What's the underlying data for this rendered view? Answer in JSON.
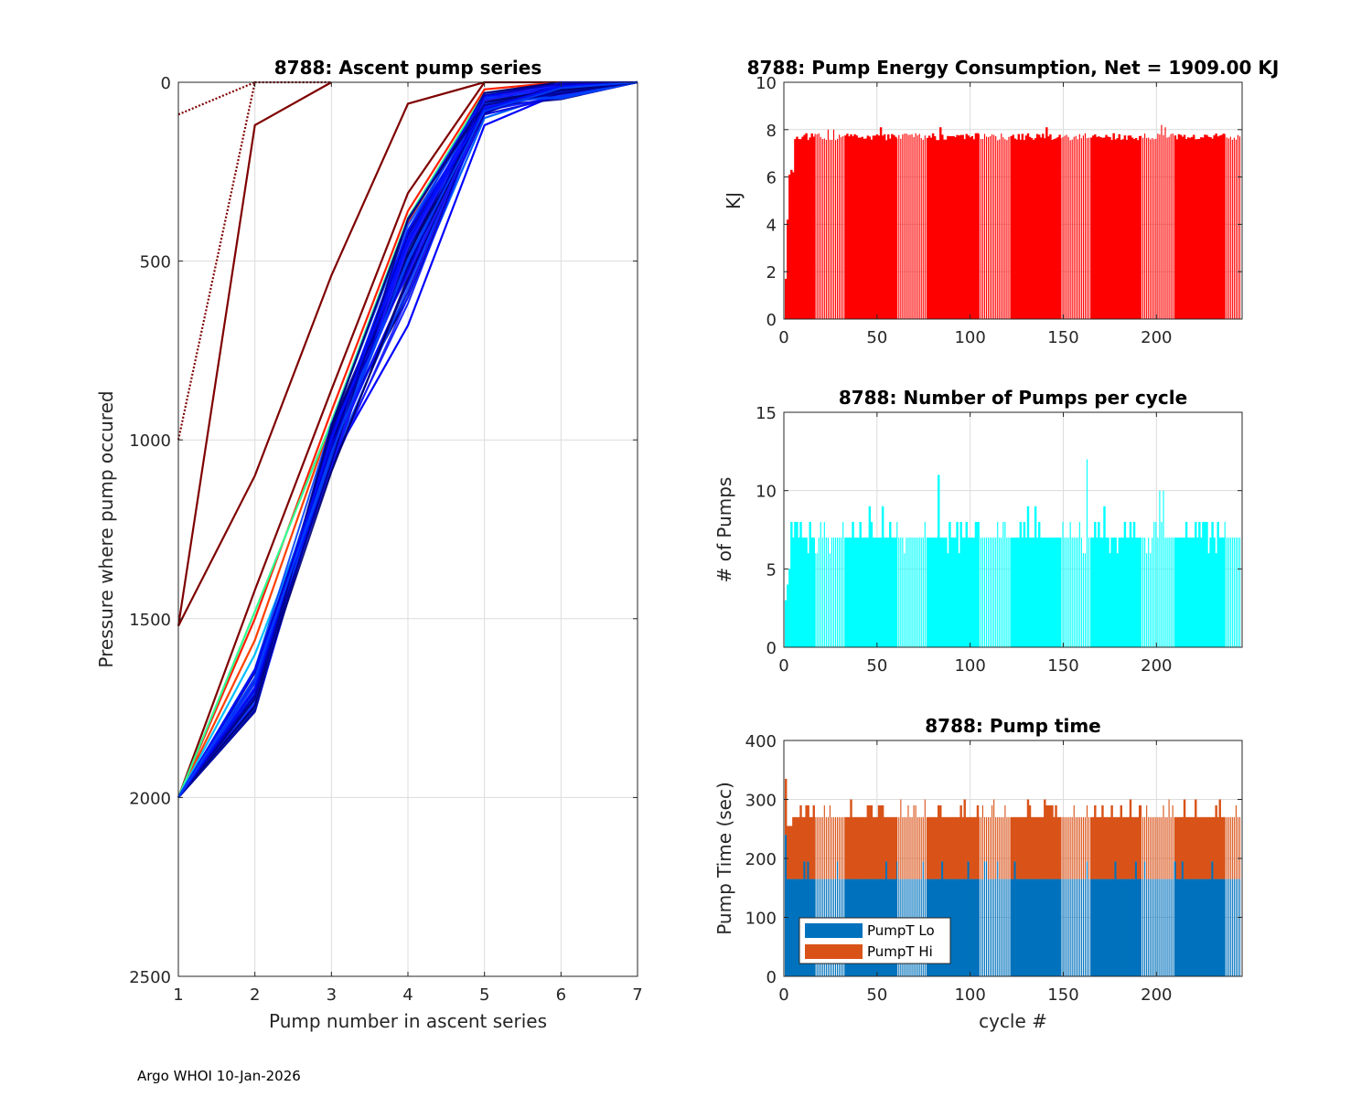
{
  "footer": "Argo WHOI 10-Jan-2026",
  "chart_data": [
    {
      "id": "ascent",
      "type": "line",
      "title": "8788: Ascent pump series",
      "xlabel": "Pump number in ascent series",
      "ylabel": "Pressure where pump occured",
      "xlim": [
        1,
        7
      ],
      "ylim": [
        0,
        2500
      ],
      "y_reversed": true,
      "xticks": [
        "1",
        "2",
        "3",
        "4",
        "5",
        "6",
        "7"
      ],
      "yticks": [
        "0",
        "500",
        "1000",
        "1500",
        "2000",
        "2500"
      ],
      "grid": true,
      "series": [
        {
          "name": "outlier-a",
          "color": "#7f0000",
          "style": "dotted",
          "x": [
            1,
            2
          ],
          "y": [
            90,
            0
          ]
        },
        {
          "name": "outlier-b",
          "color": "#7f0000",
          "style": "dotted",
          "x": [
            1,
            2,
            3
          ],
          "y": [
            1000,
            0,
            0
          ]
        },
        {
          "name": "outlier-c",
          "color": "#7f0000",
          "style": "mixed",
          "x": [
            1,
            2,
            3
          ],
          "y": [
            1520,
            120,
            0
          ]
        },
        {
          "name": "outlier-d",
          "color": "#7f0000",
          "style": "mixed",
          "x": [
            1,
            2,
            3,
            4,
            5
          ],
          "y": [
            1520,
            1100,
            540,
            60,
            0
          ]
        },
        {
          "name": "early-1",
          "color": "#7f0000",
          "x": [
            1,
            2,
            3,
            4,
            5,
            6
          ],
          "y": [
            2000,
            1420,
            860,
            310,
            0,
            0
          ]
        },
        {
          "name": "early-2",
          "color": "#ff2000",
          "x": [
            1,
            2,
            3,
            4,
            5,
            6
          ],
          "y": [
            2000,
            1500,
            920,
            360,
            20,
            0
          ]
        },
        {
          "name": "early-3",
          "color": "#ff4000",
          "x": [
            1,
            2,
            3,
            4,
            5,
            6
          ],
          "y": [
            2000,
            1560,
            950,
            390,
            40,
            10
          ]
        },
        {
          "name": "mid-1",
          "color": "#30ff90",
          "x": [
            1,
            2,
            3,
            4,
            5,
            6,
            7
          ],
          "y": [
            2000,
            1480,
            950,
            380,
            30,
            10,
            0
          ]
        },
        {
          "name": "mid-2",
          "color": "#00c0ff",
          "x": [
            1,
            2,
            3,
            4,
            5,
            6,
            7
          ],
          "y": [
            2000,
            1600,
            1050,
            470,
            80,
            20,
            0
          ]
        },
        {
          "name": "mid-3",
          "color": "#0060ff",
          "x": [
            1,
            2,
            3,
            4,
            5,
            6,
            7
          ],
          "y": [
            2000,
            1650,
            1000,
            600,
            100,
            30,
            0
          ]
        },
        {
          "name": "late-1",
          "color": "#0000ff",
          "x": [
            1,
            2,
            3,
            4,
            5,
            6,
            7
          ],
          "y": [
            2000,
            1700,
            1060,
            680,
            120,
            30,
            0
          ]
        },
        {
          "name": "late-2",
          "color": "#0000c0",
          "x": [
            1,
            2,
            3,
            4,
            5,
            6,
            7
          ],
          "y": [
            2000,
            1740,
            1000,
            450,
            50,
            10,
            0
          ]
        },
        {
          "name": "late-3",
          "color": "#000080",
          "x": [
            1,
            2,
            3,
            4,
            5,
            6,
            7
          ],
          "y": [
            2000,
            1760,
            1020,
            420,
            30,
            0,
            0
          ]
        },
        {
          "name": "late-4",
          "color": "#00008f",
          "x": [
            1,
            2,
            3,
            4,
            5,
            6,
            7
          ],
          "y": [
            2000,
            1720,
            980,
            500,
            60,
            20,
            0
          ]
        },
        {
          "name": "late-5",
          "color": "#1010e0",
          "x": [
            1,
            2,
            3,
            4,
            5,
            6,
            7
          ],
          "y": [
            2000,
            1680,
            1030,
            560,
            90,
            40,
            0
          ]
        }
      ]
    },
    {
      "id": "energy",
      "type": "bar",
      "title": "8788: Pump Energy Consumption,  Net = 1909.00 KJ",
      "xlabel": "",
      "ylabel": "KJ",
      "xlim": [
        0,
        246
      ],
      "ylim": [
        0,
        10
      ],
      "xticks": [
        "0",
        "50",
        "100",
        "150",
        "200"
      ],
      "yticks": [
        "0",
        "2",
        "4",
        "6",
        "8",
        "10"
      ],
      "grid": true,
      "color": "#ff0000",
      "segments_note": "values per cycle",
      "values_generated_from": {
        "start": [
          1.7,
          4.2,
          6.1,
          6.3,
          6.2,
          7.6,
          7.7,
          7.6,
          7.6,
          7.7
        ],
        "typical": 7.7,
        "peaks": {
          "23": 8.0,
          "26": 8.0,
          "51": 8.1,
          "83": 8.1,
          "140": 8.1,
          "202": 8.2,
          "204": 8.1
        }
      }
    },
    {
      "id": "pumps",
      "type": "bar",
      "title": "8788: Number of Pumps per cycle",
      "xlabel": "",
      "ylabel": "# of Pumps",
      "xlim": [
        0,
        246
      ],
      "ylim": [
        0,
        15
      ],
      "xticks": [
        "0",
        "50",
        "100",
        "150",
        "200"
      ],
      "yticks": [
        "0",
        "5",
        "10",
        "15"
      ],
      "grid": true,
      "color": "#00ffff",
      "values_generated_from": {
        "start": [
          3,
          4,
          5,
          8,
          7,
          8,
          8,
          7,
          8,
          7
        ],
        "typical": 7,
        "peaks": {
          "82": 11,
          "162": 12,
          "201": 10,
          "203": 10
        }
      }
    },
    {
      "id": "pumptime",
      "type": "bar",
      "stacked": true,
      "title": "8788: Pump time",
      "xlabel": "cycle #",
      "ylabel": "Pump Time (sec)",
      "xlim": [
        0,
        246
      ],
      "ylim": [
        0,
        400
      ],
      "xticks": [
        "0",
        "50",
        "100",
        "150",
        "200"
      ],
      "yticks": [
        "0",
        "100",
        "200",
        "300",
        "400"
      ],
      "grid": true,
      "legend": {
        "placement": "bottom-left",
        "entries": [
          {
            "label": "PumpT Lo",
            "color": "#0072bd"
          },
          {
            "label": "PumpT Hi",
            "color": "#d95319"
          }
        ]
      },
      "lo_typical": 165,
      "hi_total_typical": 270,
      "first_cycle": {
        "lo": 240,
        "total": 335
      }
    }
  ]
}
